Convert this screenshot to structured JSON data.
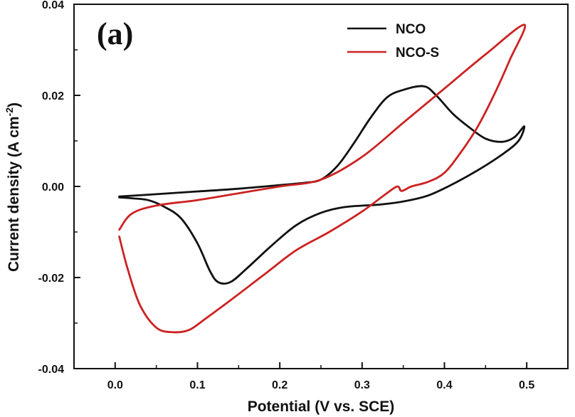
{
  "chart_data": {
    "type": "line",
    "title": "",
    "panel_label": "(a)",
    "xlabel": "Potential (V vs. SCE)",
    "ylabel": {
      "main": "Current density (A cm",
      "superscript": "-2",
      "close": ")"
    },
    "xlim": [
      -0.05,
      0.55
    ],
    "ylim": [
      -0.04,
      0.04
    ],
    "xticks": [
      0.0,
      0.1,
      0.2,
      0.3,
      0.4,
      0.5
    ],
    "xtick_labels": [
      "0.0",
      "0.1",
      "0.2",
      "0.3",
      "0.4",
      "0.5"
    ],
    "yticks": [
      -0.04,
      -0.02,
      0.0,
      0.02,
      0.04
    ],
    "ytick_labels": [
      "-0.04",
      "-0.02",
      "0.00",
      "0.02",
      "0.04"
    ],
    "grid": false,
    "legend_position": "top-right",
    "series": [
      {
        "name": "NCO",
        "color": "#111111",
        "points": [
          [
            0.005,
            -0.0022
          ],
          [
            0.05,
            -0.0017
          ],
          [
            0.1,
            -0.0011
          ],
          [
            0.15,
            -0.0005
          ],
          [
            0.2,
            0.0003
          ],
          [
            0.23,
            0.0008
          ],
          [
            0.25,
            0.0015
          ],
          [
            0.27,
            0.0045
          ],
          [
            0.29,
            0.0095
          ],
          [
            0.31,
            0.015
          ],
          [
            0.33,
            0.0195
          ],
          [
            0.35,
            0.0212
          ],
          [
            0.375,
            0.022
          ],
          [
            0.39,
            0.02
          ],
          [
            0.41,
            0.016
          ],
          [
            0.43,
            0.013
          ],
          [
            0.45,
            0.0105
          ],
          [
            0.47,
            0.0098
          ],
          [
            0.485,
            0.0108
          ],
          [
            0.497,
            0.0132
          ],
          [
            0.49,
            0.01
          ],
          [
            0.47,
            0.007
          ],
          [
            0.44,
            0.0035
          ],
          [
            0.41,
            0.0005
          ],
          [
            0.38,
            -0.002
          ],
          [
            0.35,
            -0.0033
          ],
          [
            0.32,
            -0.004
          ],
          [
            0.28,
            -0.0045
          ],
          [
            0.25,
            -0.0058
          ],
          [
            0.22,
            -0.0085
          ],
          [
            0.19,
            -0.013
          ],
          [
            0.16,
            -0.018
          ],
          [
            0.14,
            -0.021
          ],
          [
            0.125,
            -0.021
          ],
          [
            0.115,
            -0.0185
          ],
          [
            0.1,
            -0.0125
          ],
          [
            0.08,
            -0.007
          ],
          [
            0.06,
            -0.0045
          ],
          [
            0.04,
            -0.003
          ],
          [
            0.02,
            -0.0026
          ],
          [
            0.005,
            -0.0024
          ]
        ]
      },
      {
        "name": "NCO-S",
        "color": "#cc2222",
        "points": [
          [
            0.005,
            -0.0095
          ],
          [
            0.02,
            -0.006
          ],
          [
            0.05,
            -0.0042
          ],
          [
            0.1,
            -0.003
          ],
          [
            0.15,
            -0.0015
          ],
          [
            0.2,
            0.0
          ],
          [
            0.25,
            0.0015
          ],
          [
            0.3,
            0.0065
          ],
          [
            0.35,
            0.014
          ],
          [
            0.4,
            0.0215
          ],
          [
            0.45,
            0.029
          ],
          [
            0.497,
            0.0355
          ],
          [
            0.48,
            0.028
          ],
          [
            0.46,
            0.02
          ],
          [
            0.44,
            0.013
          ],
          [
            0.42,
            0.0075
          ],
          [
            0.4,
            0.003
          ],
          [
            0.38,
            0.001
          ],
          [
            0.36,
            0.0
          ],
          [
            0.348,
            -0.001
          ],
          [
            0.343,
            0.0
          ],
          [
            0.33,
            -0.0015
          ],
          [
            0.3,
            -0.0055
          ],
          [
            0.26,
            -0.01
          ],
          [
            0.22,
            -0.014
          ],
          [
            0.18,
            -0.0195
          ],
          [
            0.14,
            -0.025
          ],
          [
            0.11,
            -0.029
          ],
          [
            0.09,
            -0.0315
          ],
          [
            0.07,
            -0.032
          ],
          [
            0.05,
            -0.031
          ],
          [
            0.03,
            -0.026
          ],
          [
            0.015,
            -0.018
          ],
          [
            0.005,
            -0.011
          ]
        ]
      }
    ]
  }
}
